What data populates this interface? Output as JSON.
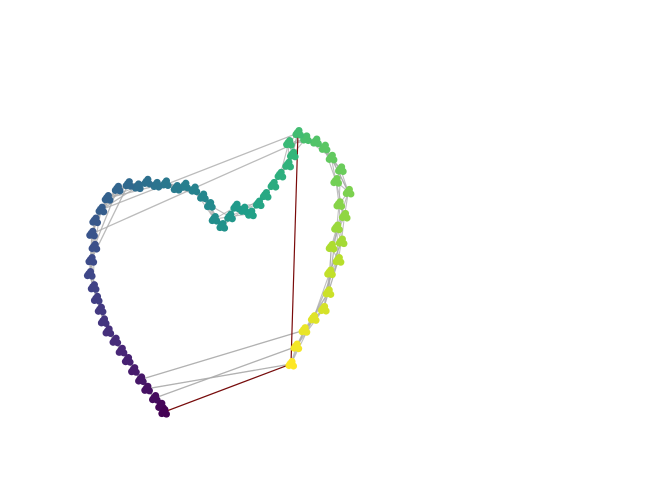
{
  "chart_data": {
    "type": "scatter",
    "layout": "network-graph",
    "axes_visible": false,
    "grid": false,
    "legend": "none",
    "colormap": "viridis",
    "edge_color": "#aaaaaa",
    "highlight_edge_color": "#7a0a0a",
    "nodes": [
      {
        "x": 0.0,
        "y": 0.0
      },
      {
        "x": 0.33,
        "y": 1.12
      },
      {
        "x": 0.85,
        "y": 2.18
      },
      {
        "x": 1.45,
        "y": 2.95
      },
      {
        "x": 2.1,
        "y": 3.55
      },
      {
        "x": 2.4,
        "y": 4.62
      },
      {
        "x": 2.5,
        "y": 5.9
      },
      {
        "x": 3.05,
        "y": 6.7
      },
      {
        "x": 2.6,
        "y": 7.55
      },
      {
        "x": 3.25,
        "y": 7.9
      },
      {
        "x": 2.95,
        "y": 8.8
      },
      {
        "x": 3.45,
        "y": 9.55
      },
      {
        "x": 3.1,
        "y": 10.3
      },
      {
        "x": 3.7,
        "y": 11.1
      },
      {
        "x": 2.9,
        "y": 11.8
      },
      {
        "x": 3.2,
        "y": 12.55
      },
      {
        "x": 2.6,
        "y": 13.3
      },
      {
        "x": 2.15,
        "y": 13.95
      },
      {
        "x": 1.6,
        "y": 14.35
      },
      {
        "x": 0.95,
        "y": 14.55
      },
      {
        "x": 0.45,
        "y": 14.9
      },
      {
        "x": -0.15,
        "y": 14.25
      },
      {
        "x": 0.1,
        "y": 13.5
      },
      {
        "x": -0.2,
        "y": 12.85
      },
      {
        "x": -0.7,
        "y": 12.2
      },
      {
        "x": -1.15,
        "y": 11.55
      },
      {
        "x": -1.65,
        "y": 10.9
      },
      {
        "x": -2.1,
        "y": 10.35
      },
      {
        "x": -2.6,
        "y": 9.7
      },
      {
        "x": -3.05,
        "y": 9.95
      },
      {
        "x": -3.55,
        "y": 10.15
      },
      {
        "x": -3.95,
        "y": 9.5
      },
      {
        "x": -4.45,
        "y": 8.9
      },
      {
        "x": -4.95,
        "y": 9.35
      },
      {
        "x": -5.25,
        "y": 10.25
      },
      {
        "x": -5.7,
        "y": 10.8
      },
      {
        "x": -6.25,
        "y": 11.25
      },
      {
        "x": -6.85,
        "y": 11.5
      },
      {
        "x": -7.4,
        "y": 11.35
      },
      {
        "x": -8.1,
        "y": 11.65
      },
      {
        "x": -8.7,
        "y": 11.55
      },
      {
        "x": -9.3,
        "y": 11.75
      },
      {
        "x": -9.9,
        "y": 11.45
      },
      {
        "x": -10.5,
        "y": 11.6
      },
      {
        "x": -11.2,
        "y": 11.3
      },
      {
        "x": -11.85,
        "y": 10.7
      },
      {
        "x": -12.25,
        "y": 9.95
      },
      {
        "x": -12.65,
        "y": 9.25
      },
      {
        "x": -12.85,
        "y": 8.4
      },
      {
        "x": -12.7,
        "y": 7.55
      },
      {
        "x": -12.9,
        "y": 6.7
      },
      {
        "x": -13.0,
        "y": 5.8
      },
      {
        "x": -12.75,
        "y": 4.95
      },
      {
        "x": -12.55,
        "y": 4.2
      },
      {
        "x": -12.3,
        "y": 3.5
      },
      {
        "x": -12.1,
        "y": 2.75
      },
      {
        "x": -11.8,
        "y": 2.1
      },
      {
        "x": -11.35,
        "y": 1.5
      },
      {
        "x": -10.95,
        "y": 0.85
      },
      {
        "x": -10.55,
        "y": 0.25
      },
      {
        "x": -10.15,
        "y": -0.4
      },
      {
        "x": -9.7,
        "y": -1.0
      },
      {
        "x": -9.3,
        "y": -1.6
      },
      {
        "x": -8.8,
        "y": -2.2
      },
      {
        "x": -8.4,
        "y": -2.7
      },
      {
        "x": -8.2,
        "y": -3.1
      }
    ],
    "highlight_edges": [
      [
        0,
        20
      ],
      [
        0,
        65
      ]
    ],
    "extra_edges": [
      [
        0,
        62
      ],
      [
        1,
        63
      ],
      [
        2,
        61
      ],
      [
        19,
        48
      ],
      [
        20,
        46
      ],
      [
        0,
        65
      ],
      [
        45,
        47
      ],
      [
        43,
        50
      ],
      [
        44,
        49
      ],
      [
        42,
        46
      ],
      [
        39,
        45
      ],
      [
        41,
        44
      ],
      [
        3,
        7
      ],
      [
        6,
        9
      ],
      [
        13,
        16
      ],
      [
        5,
        10
      ]
    ]
  }
}
